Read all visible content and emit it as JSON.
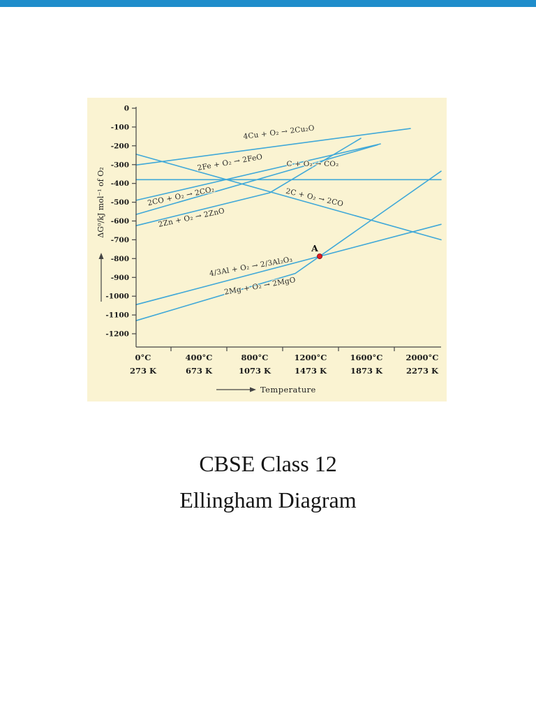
{
  "page": {
    "title_lines": [
      "CBSE Class 12",
      "Ellingham Diagram"
    ]
  },
  "colors": {
    "top_bar": "#1f8dcb",
    "panel_bg": "#faf3d2",
    "curve": "#3fa8d8",
    "axis": "#444444",
    "point": "#e11b22"
  },
  "chart_data": {
    "type": "line",
    "title": "Ellingham Diagram",
    "xlabel": "Temperature",
    "ylabel": "ΔG⁰/kJ mol⁻¹ of O₂",
    "grid": "off",
    "legend": "none",
    "xlim_celsius": [
      -50,
      2135
    ],
    "ylim": [
      -1200,
      0
    ],
    "y_ticks": [
      0,
      -100,
      -200,
      -300,
      -400,
      -500,
      -600,
      -700,
      -800,
      -900,
      -1000,
      -1100,
      -1200
    ],
    "x_minor_ticks": [
      200,
      600,
      1000,
      1400,
      1800
    ],
    "x_ticks": [
      {
        "t": 0,
        "celsius": "0°C",
        "kelvin": "273 K"
      },
      {
        "t": 400,
        "celsius": "400°C",
        "kelvin": "673 K"
      },
      {
        "t": 800,
        "celsius": "800°C",
        "kelvin": "1073 K"
      },
      {
        "t": 1200,
        "celsius": "1200°C",
        "kelvin": "1473 K"
      },
      {
        "t": 1600,
        "celsius": "1600°C",
        "kelvin": "1873 K"
      },
      {
        "t": 2000,
        "celsius": "2000°C",
        "kelvin": "2273 K"
      }
    ],
    "series": [
      {
        "id": "cu2o",
        "name": "4Cu + O₂ → 2Cu₂O",
        "points": [
          [
            -50,
            -302
          ],
          [
            1915,
            -108
          ]
        ],
        "label_t": 975,
        "label_g": -140,
        "label_rot": -7
      },
      {
        "id": "feo",
        "name": "2Fe + O₂ → 2FeO",
        "points": [
          [
            -50,
            -490
          ],
          [
            1700,
            -190
          ]
        ],
        "label_t": 625,
        "label_g": -300,
        "label_rot": -10
      },
      {
        "id": "co2",
        "name": "C + O₂ → CO₂",
        "points": [
          [
            -50,
            -380
          ],
          [
            2135,
            -380
          ]
        ],
        "label_t": 1215,
        "label_g": -308,
        "label_rot": 0
      },
      {
        "id": "co_co2",
        "name": "2CO + O₂ → 2CO₂",
        "points": [
          [
            -50,
            -565
          ],
          [
            1680,
            -195
          ]
        ],
        "label_t": 275,
        "label_g": -480,
        "label_rot": -12
      },
      {
        "id": "c_co",
        "name": "2C + O₂ → 2CO",
        "points": [
          [
            -50,
            -245
          ],
          [
            2135,
            -700
          ]
        ],
        "label_t": 1225,
        "label_g": -487,
        "label_rot": 13
      },
      {
        "id": "zno",
        "name": "2Zn + O₂ → 2ZnO",
        "points": [
          [
            -50,
            -625
          ],
          [
            907,
            -450
          ],
          [
            1560,
            -160
          ]
        ],
        "label_t": 350,
        "label_g": -594,
        "label_rot": -12
      },
      {
        "id": "al2o3",
        "name": "4/3Al + O₂ → 2/3Al₂O₃",
        "points": [
          [
            -50,
            -1045
          ],
          [
            2135,
            -618
          ]
        ],
        "label_t": 775,
        "label_g": -854,
        "label_rot": -10
      },
      {
        "id": "mgo",
        "name": "2Mg + O₂ → 2MgO",
        "points": [
          [
            -50,
            -1130
          ],
          [
            1090,
            -879
          ],
          [
            2135,
            -335
          ]
        ],
        "label_t": 840,
        "label_g": -958,
        "label_rot": -10
      }
    ],
    "annotations": [
      {
        "label": "A",
        "t": 1265,
        "g": -788
      }
    ]
  }
}
